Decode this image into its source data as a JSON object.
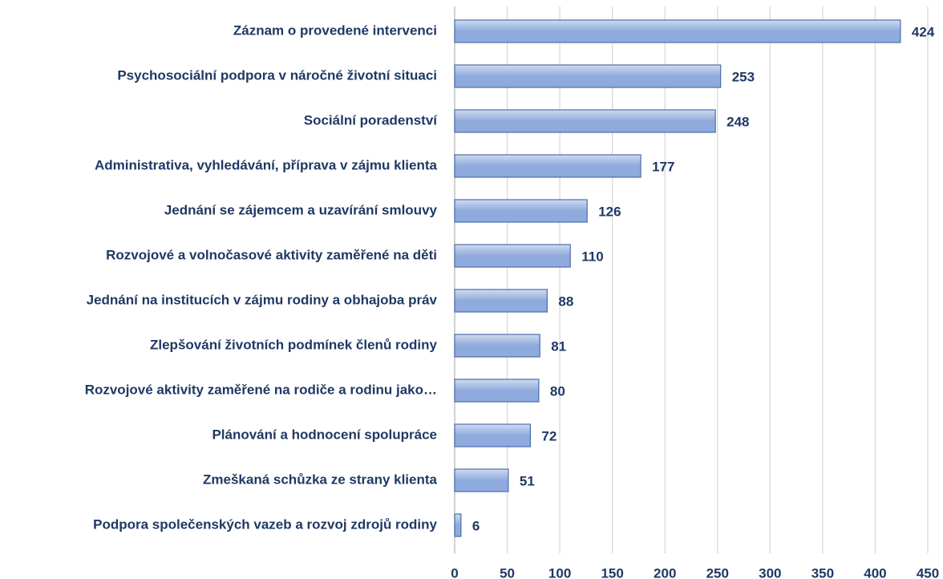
{
  "chart_data": {
    "type": "bar",
    "orientation": "horizontal",
    "categories": [
      "Záznam o provedené intervenci",
      "Psychosociální podpora v náročné životní situaci",
      "Sociální poradenství",
      "Administrativa, vyhledávání, příprava v zájmu klienta",
      "Jednání se zájemcem a uzavírání smlouvy",
      "Rozvojové a volnočasové aktivity zaměřené na děti",
      "Jednání na institucích v zájmu rodiny a obhajoba práv",
      "Zlepšování životních podmínek členů rodiny",
      "Rozvojové aktivity zaměřené na rodiče a rodinu jako…",
      "Plánování a hodnocení spolupráce",
      "Zmeškaná schůzka ze strany klienta",
      "Podpora společenských vazeb a rozvoj zdrojů rodiny"
    ],
    "values": [
      424,
      253,
      248,
      177,
      126,
      110,
      88,
      81,
      80,
      72,
      51,
      6
    ],
    "color": "#8faadc",
    "border_color": "#4a6fa8",
    "xlim": [
      0,
      450
    ],
    "xticks": [
      0,
      50,
      100,
      150,
      200,
      250,
      300,
      350,
      400,
      450
    ],
    "grid": true
  }
}
